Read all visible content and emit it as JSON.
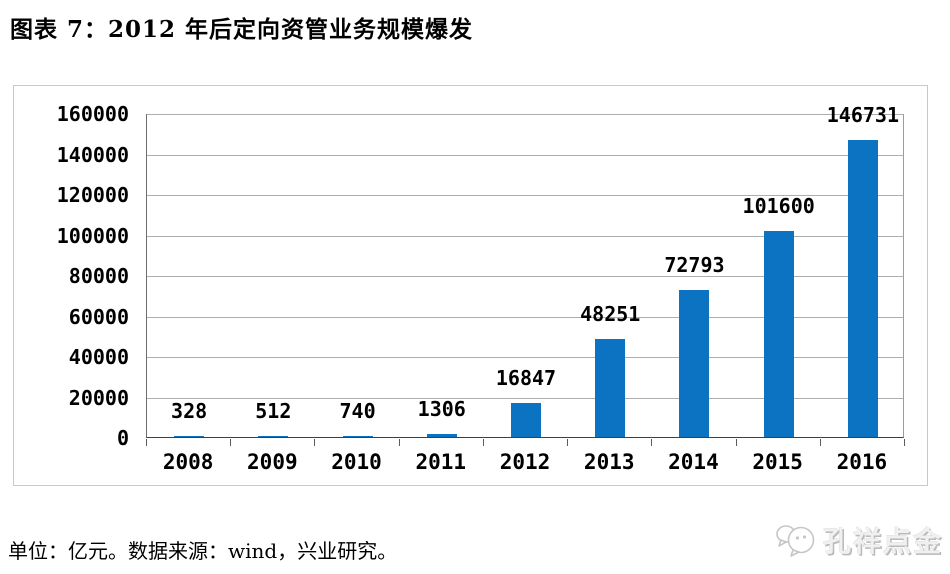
{
  "title": "图表 7：2012 年后定向资管业务规模爆发",
  "footer": {
    "note": "单位：亿元。数据来源：wind，兴业研究。"
  },
  "watermark": {
    "icon": "chat-bubbles-icon",
    "label": "孔祥点金"
  },
  "colors": {
    "bar": "#0b73c2",
    "gridline": "#aeaeae",
    "axis": "#3f3f3f",
    "text": "#000000",
    "frame_border": "#c9c9c9",
    "watermark": "#c6c6c6"
  },
  "chart_data": {
    "type": "bar",
    "title": "图表 7：2012 年后定向资管业务规模爆发",
    "categories": [
      "2008",
      "2009",
      "2010",
      "2011",
      "2012",
      "2013",
      "2014",
      "2015",
      "2016"
    ],
    "values": [
      328,
      512,
      740,
      1306,
      16847,
      48251,
      72793,
      101600,
      146731
    ],
    "data_labels": [
      "328",
      "512",
      "740",
      "1306",
      "16847",
      "48251",
      "72793",
      "101600",
      "146731"
    ],
    "xlabel": "",
    "ylabel": "",
    "unit": "亿元",
    "ylim": [
      0,
      160000
    ],
    "yticks": [
      0,
      20000,
      40000,
      60000,
      80000,
      100000,
      120000,
      140000,
      160000
    ],
    "grid": true,
    "legend": "none",
    "bar_color": "#0b73c2"
  }
}
